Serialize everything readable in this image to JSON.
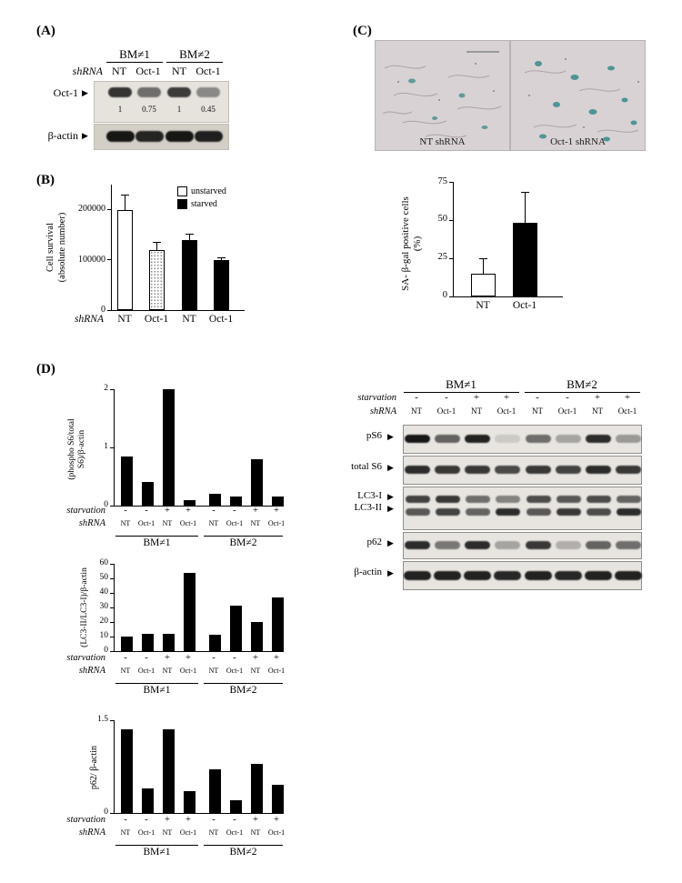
{
  "panel_a": {
    "label": "(A)",
    "groups": [
      "BM≠1",
      "BM≠2"
    ],
    "shrna_label": "shRNA",
    "lanes": [
      "NT",
      "Oct-1",
      "NT",
      "Oct-1"
    ],
    "rows": {
      "oct1": {
        "label": "Oct-1",
        "quant": [
          "1",
          "0.75",
          "1",
          "0.45"
        ],
        "band_intensities": [
          0.82,
          0.55,
          0.78,
          0.42
        ]
      },
      "actin": {
        "label": "β-actin",
        "band_intensities": [
          0.95,
          0.88,
          0.95,
          0.9
        ]
      }
    }
  },
  "panel_b": {
    "label": "(B)",
    "chart_data": {
      "type": "bar",
      "ylabel": "Cell survival (absolute number)",
      "ylabel_lines": [
        "Cell survival",
        "(absolute number)"
      ],
      "xlabel_prefix": "shRNA",
      "categories": [
        "NT",
        "Oct-1",
        "NT",
        "Oct-1"
      ],
      "values": [
        200000,
        120000,
        140000,
        100000
      ],
      "errors": [
        30000,
        15000,
        12000,
        5000
      ],
      "styles": [
        "white",
        "stipple",
        "black",
        "black"
      ],
      "yticks": [
        0,
        100000,
        200000
      ],
      "ylim": [
        0,
        250000
      ],
      "legend": [
        {
          "label": "unstarved",
          "style": "white"
        },
        {
          "label": "starved",
          "style": "black"
        }
      ],
      "legend_position": "top-right"
    }
  },
  "panel_c": {
    "label": "(C)",
    "images": [
      {
        "caption": "NT shRNA"
      },
      {
        "caption": "Oct-1 shRNA"
      }
    ],
    "chart_data": {
      "type": "bar",
      "ylabel": "SA- β-gal positive cells (%)",
      "ylabel_lines": [
        "SA- β-gal positive cells",
        "(%)"
      ],
      "categories": [
        "NT",
        "Oct-1"
      ],
      "values": [
        15,
        48
      ],
      "errors": [
        10,
        20
      ],
      "styles": [
        "white",
        "black"
      ],
      "yticks": [
        0,
        25,
        50,
        75
      ],
      "ylim": [
        0,
        75
      ]
    }
  },
  "panel_d": {
    "label": "(D)",
    "row_labels": {
      "starvation": "starvation",
      "shrna": "shRNA"
    },
    "lanes": {
      "starvation": [
        "-",
        "-",
        "+",
        "+",
        "-",
        "-",
        "+",
        "+"
      ],
      "shrna": [
        "NT",
        "Oct-1",
        "NT",
        "Oct-1",
        "NT",
        "Oct-1",
        "NT",
        "Oct-1"
      ]
    },
    "groups": [
      "BM≠1",
      "BM≠2"
    ],
    "charts": [
      {
        "type": "bar",
        "ylabel": "(phospho S6/total S6)/β-actin",
        "ylabel_lines": [
          "(phospho S6/total",
          "S6)/β-actin"
        ],
        "yticks": [
          0,
          1,
          2
        ],
        "ylim": [
          0,
          2
        ],
        "values": [
          0.85,
          0.4,
          2,
          0.1,
          0.2,
          0.15,
          0.8,
          0.15
        ]
      },
      {
        "type": "bar",
        "ylabel": "(LC3-II/LC3-I)/β-actin",
        "ylabel_lines": [
          "(LC3-II/LC3-I)/β-actin"
        ],
        "yticks": [
          0,
          10,
          20,
          30,
          40,
          50,
          60
        ],
        "ylim": [
          0,
          60
        ],
        "values": [
          10,
          12,
          12,
          54,
          11,
          31,
          20,
          37
        ]
      },
      {
        "type": "bar",
        "ylabel": "p62/ β-actin",
        "ylabel_lines": [
          "p62/ β-actin"
        ],
        "yticks": [
          0,
          1.5
        ],
        "ylim": [
          0,
          1.5
        ],
        "values": [
          1.35,
          0.4,
          1.35,
          0.35,
          0.7,
          0.2,
          0.8,
          0.45
        ]
      }
    ],
    "blots": {
      "ps6": {
        "label": "pS6",
        "band_intensities": [
          0.95,
          0.6,
          0.9,
          0.12,
          0.55,
          0.3,
          0.85,
          0.35
        ]
      },
      "total_s6": {
        "label": "total S6",
        "band_intensities": [
          0.85,
          0.8,
          0.8,
          0.72,
          0.8,
          0.75,
          0.85,
          0.8
        ]
      },
      "lc3_i": {
        "label": "LC3-I",
        "band_intensities": [
          0.75,
          0.8,
          0.55,
          0.45,
          0.7,
          0.65,
          0.7,
          0.6
        ]
      },
      "lc3_ii": {
        "label": "LC3-II",
        "band_intensities": [
          0.65,
          0.75,
          0.6,
          0.85,
          0.65,
          0.8,
          0.7,
          0.85
        ]
      },
      "p62": {
        "label": "p62",
        "band_intensities": [
          0.85,
          0.5,
          0.85,
          0.3,
          0.8,
          0.25,
          0.6,
          0.55
        ]
      },
      "actin": {
        "label": "β-actin",
        "band_intensities": [
          0.9,
          0.9,
          0.9,
          0.88,
          0.9,
          0.88,
          0.9,
          0.9
        ]
      }
    }
  }
}
